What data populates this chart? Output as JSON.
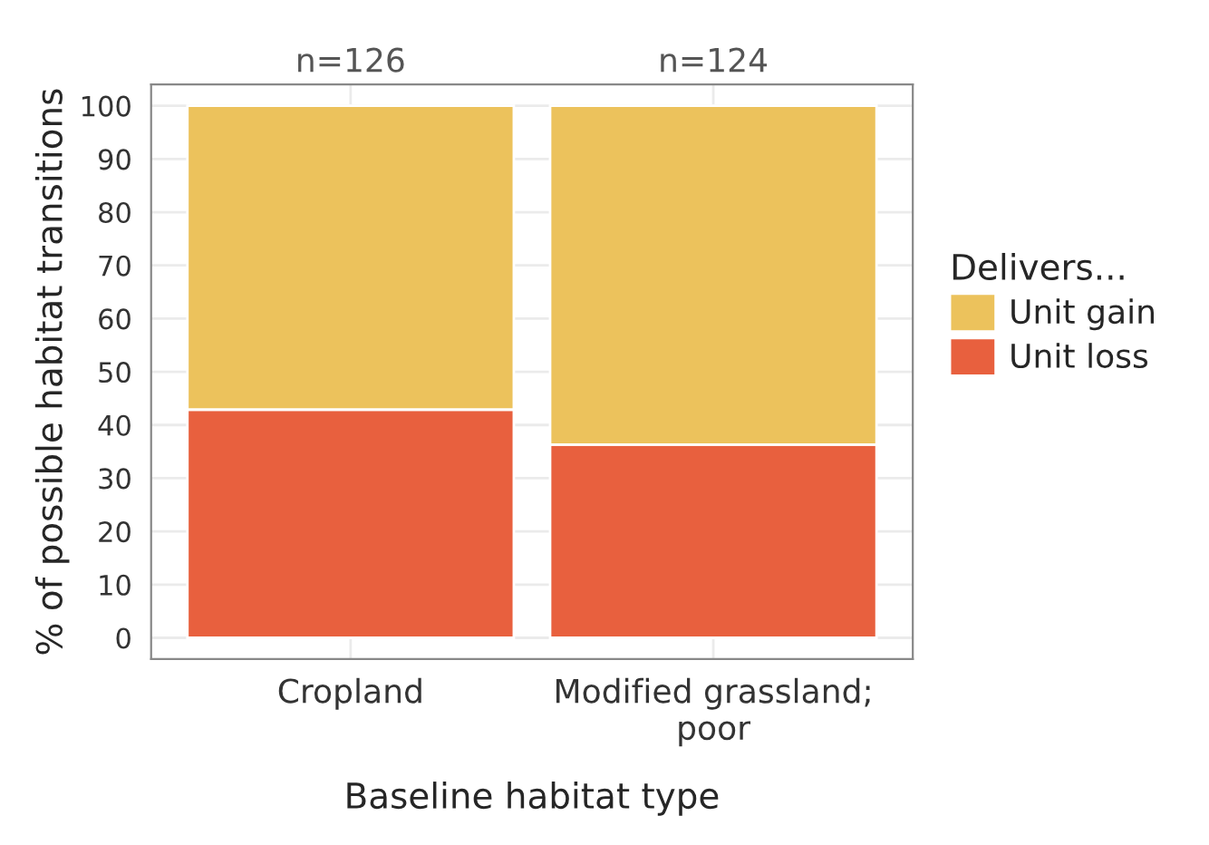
{
  "chart_data": {
    "type": "bar",
    "stacked": true,
    "categories": [
      "Cropland",
      "Modified grassland;\npoor"
    ],
    "series": [
      {
        "name": "Unit loss",
        "color": "#e8603e",
        "values": [
          42.9,
          36.3
        ]
      },
      {
        "name": "Unit gain",
        "color": "#ecc25c",
        "values": [
          57.1,
          63.7
        ]
      }
    ],
    "xlabel": "Baseline habitat type",
    "ylabel": "% of possible habitat transitions",
    "legend_title": "Delivers...",
    "legend": "right",
    "ylim": [
      -4,
      104
    ],
    "yticks": [
      0,
      10,
      20,
      30,
      40,
      50,
      60,
      70,
      80,
      90,
      100
    ],
    "grid": true,
    "annotations": [
      "n=126",
      "n=124"
    ]
  }
}
